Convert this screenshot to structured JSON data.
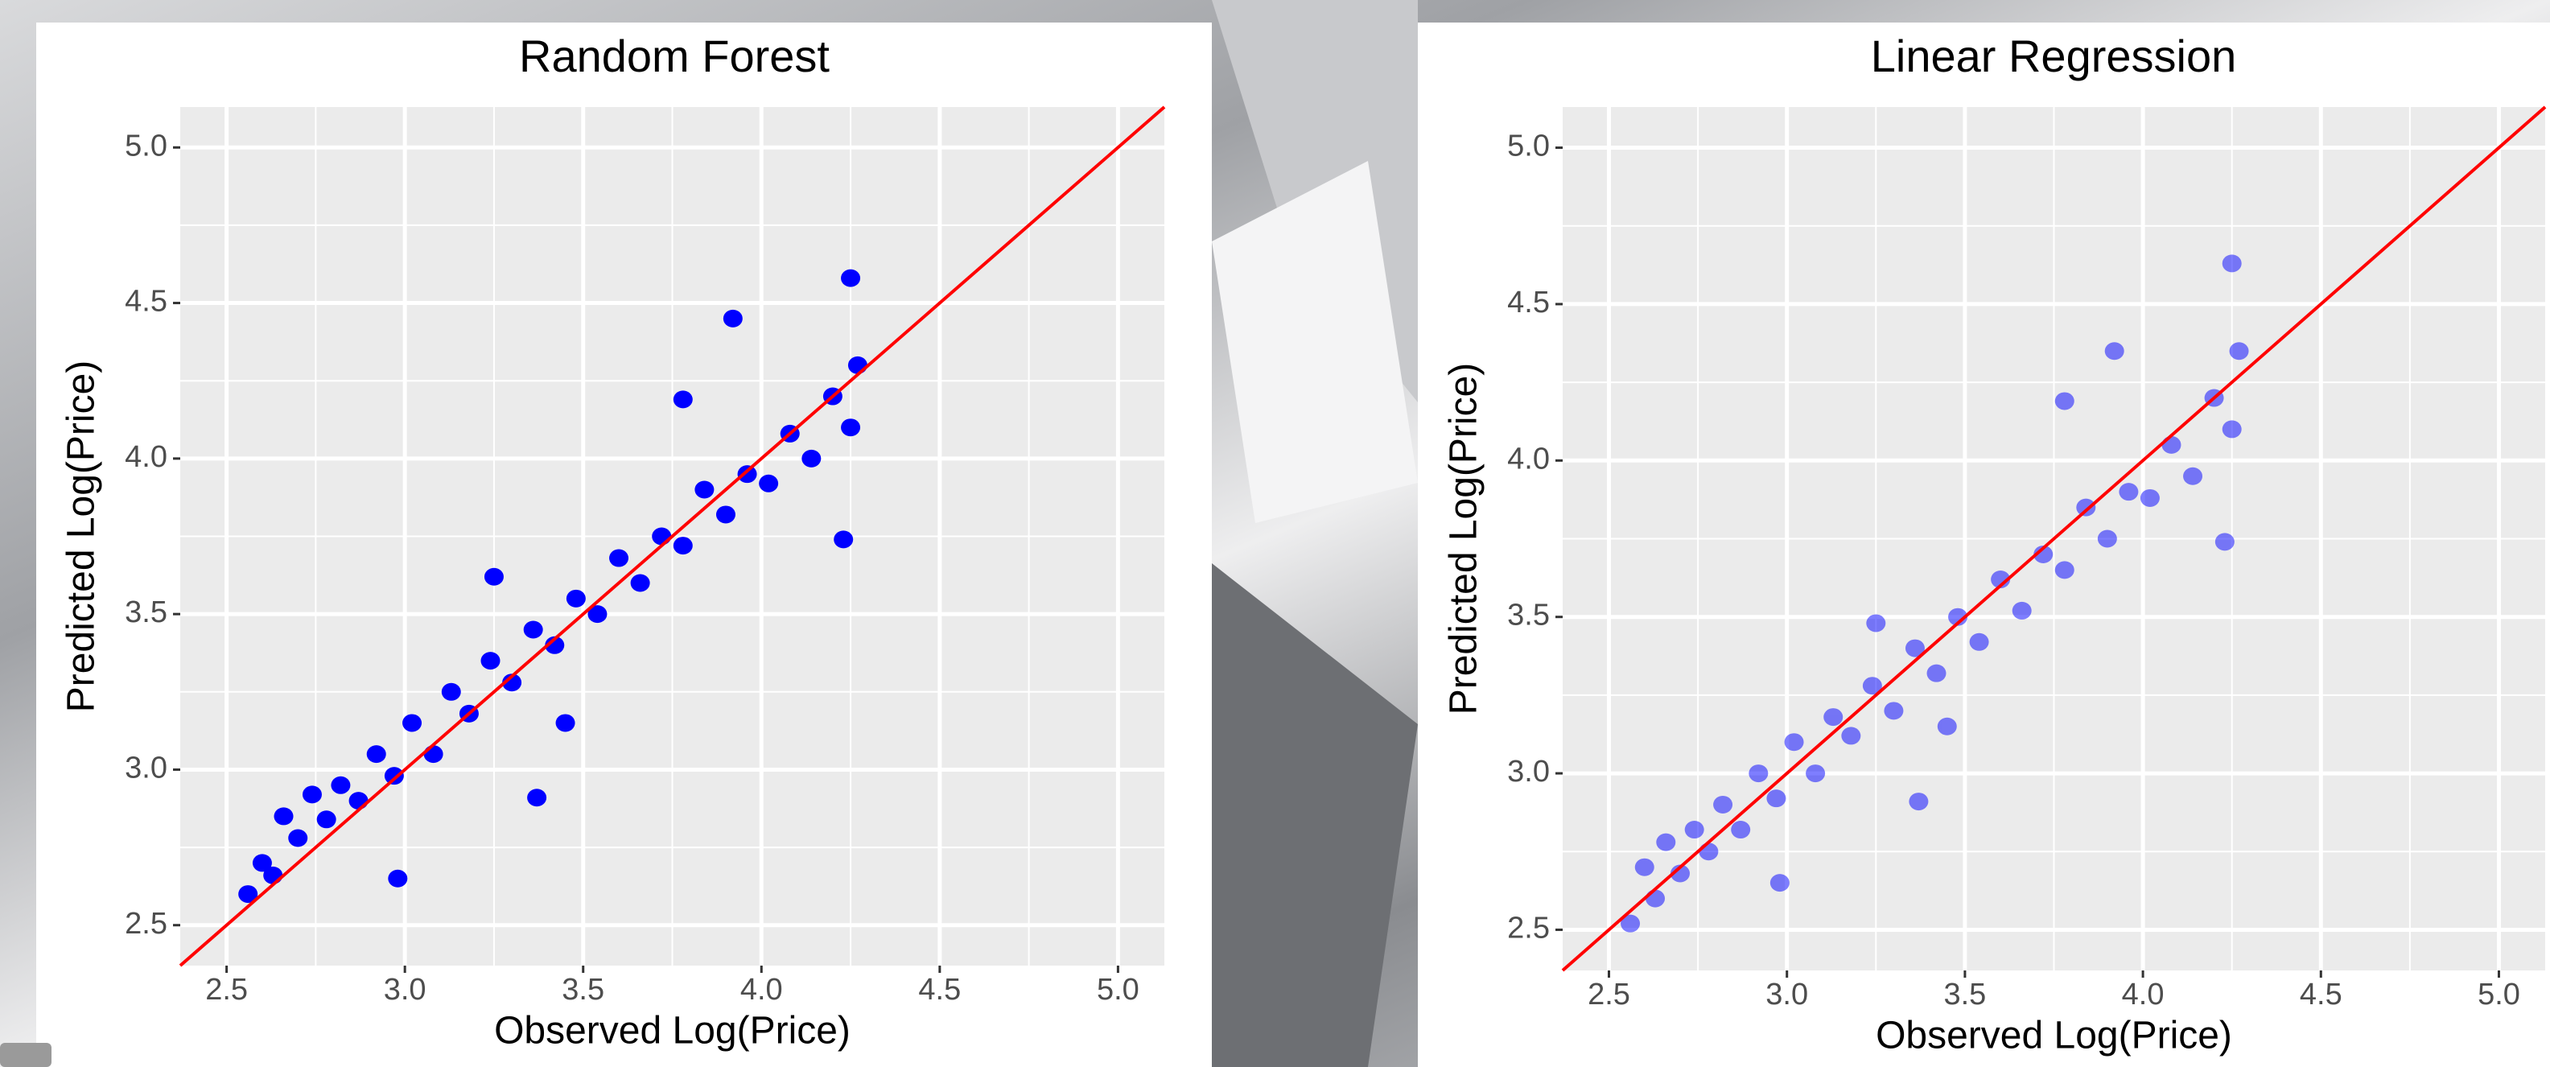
{
  "chart_data": [
    {
      "type": "scatter",
      "title": "Random Forest",
      "x_label": "Observed Log(Price)",
      "y_label": "Predicted Log(Price)",
      "xlim": [
        2.37,
        5.13
      ],
      "ylim": [
        2.37,
        5.13
      ],
      "xticks": [
        2.5,
        {
          "value": 3,
          "label": "3.0"
        },
        3.5,
        {
          "value": 4,
          "label": "4.0"
        },
        4.5,
        {
          "value": 5,
          "label": "5.0"
        }
      ],
      "yticks": [
        2.5,
        {
          "value": 3,
          "label": "3.0"
        },
        3.5,
        {
          "value": 4,
          "label": "4.0"
        },
        4.5,
        {
          "value": 5,
          "label": "5.0"
        }
      ],
      "minor_xticks": [
        2.75,
        3.25,
        3.75,
        4.25,
        4.75
      ],
      "minor_yticks": [
        2.75,
        3.25,
        3.75,
        4.25,
        4.75
      ],
      "grid": true,
      "color": "#0000ff",
      "point_alpha": 1,
      "reference_line": {
        "slope": 1,
        "intercept": 0,
        "color": "#ff0000"
      },
      "x": [
        2.56,
        2.6,
        2.63,
        2.66,
        2.7,
        2.74,
        2.78,
        2.82,
        2.87,
        2.92,
        2.97,
        3.02,
        3.08,
        3.13,
        3.18,
        3.24,
        3.3,
        3.36,
        3.42,
        3.48,
        3.54,
        3.6,
        3.66,
        3.72,
        3.78,
        3.84,
        3.9,
        3.96,
        4.02,
        4.08,
        4.14,
        4.2,
        4.25,
        4.27,
        3.37,
        3.78,
        3.92,
        4.25,
        4.23,
        2.98,
        3.25,
        3.45
      ],
      "values": [
        2.6,
        2.7,
        2.66,
        2.85,
        2.78,
        2.92,
        2.84,
        2.95,
        2.9,
        3.05,
        2.98,
        3.15,
        3.05,
        3.25,
        3.18,
        3.35,
        3.28,
        3.45,
        3.4,
        3.55,
        3.5,
        3.68,
        3.6,
        3.75,
        3.72,
        3.9,
        3.82,
        3.95,
        3.92,
        4.08,
        4.0,
        4.2,
        4.1,
        4.3,
        2.91,
        4.19,
        4.45,
        4.58,
        3.74,
        2.65,
        3.62,
        3.15
      ]
    },
    {
      "type": "scatter",
      "title": "Linear Regression",
      "x_label": "Observed Log(Price)",
      "y_label": "Predicted Log(Price)",
      "xlim": [
        2.37,
        5.13
      ],
      "ylim": [
        2.37,
        5.13
      ],
      "xticks": [
        2.5,
        {
          "value": 3,
          "label": "3.0"
        },
        3.5,
        {
          "value": 4,
          "label": "4.0"
        },
        4.5,
        {
          "value": 5,
          "label": "5.0"
        }
      ],
      "yticks": [
        2.5,
        {
          "value": 3,
          "label": "3.0"
        },
        3.5,
        {
          "value": 4,
          "label": "4.0"
        },
        4.5,
        {
          "value": 5,
          "label": "5.0"
        }
      ],
      "minor_xticks": [
        2.75,
        3.25,
        3.75,
        4.25,
        4.75
      ],
      "minor_yticks": [
        2.75,
        3.25,
        3.75,
        4.25,
        4.75
      ],
      "grid": true,
      "color": "#0000ff",
      "point_alpha": 0.5,
      "reference_line": {
        "slope": 1,
        "intercept": 0,
        "color": "#ff0000"
      },
      "x": [
        2.56,
        2.6,
        2.63,
        2.66,
        2.7,
        2.74,
        2.78,
        2.82,
        2.87,
        2.92,
        2.97,
        3.02,
        3.08,
        3.13,
        3.18,
        3.24,
        3.3,
        3.36,
        3.42,
        3.48,
        3.54,
        3.6,
        3.66,
        3.72,
        3.78,
        3.84,
        3.9,
        3.96,
        4.02,
        4.08,
        4.14,
        4.2,
        4.25,
        4.27,
        3.37,
        3.78,
        3.92,
        4.25,
        4.23,
        2.98,
        3.25,
        3.45
      ],
      "values": [
        2.52,
        2.7,
        2.6,
        2.78,
        2.68,
        2.82,
        2.75,
        2.9,
        2.82,
        3.0,
        2.92,
        3.1,
        3.0,
        3.18,
        3.12,
        3.28,
        3.2,
        3.4,
        3.32,
        3.5,
        3.42,
        3.62,
        3.52,
        3.7,
        3.65,
        3.85,
        3.75,
        3.9,
        3.88,
        4.05,
        3.95,
        4.2,
        4.1,
        4.35,
        2.91,
        4.19,
        4.35,
        4.63,
        3.74,
        2.65,
        3.48,
        3.15
      ]
    }
  ]
}
